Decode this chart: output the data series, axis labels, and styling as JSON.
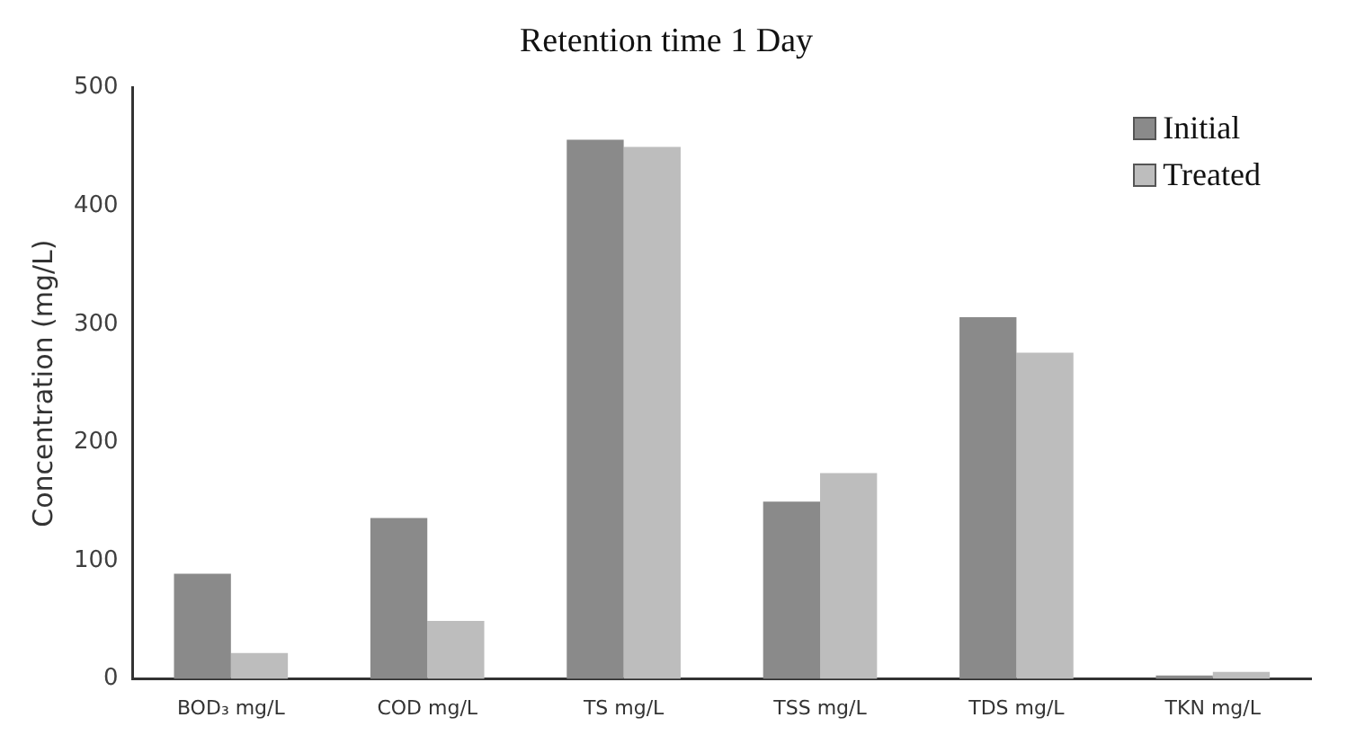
{
  "chart_data": {
    "type": "bar",
    "title": "Retention time 1 Day",
    "ylabel": "Concentration (mg/L)",
    "categories": [
      "BOD₃ mg/L",
      "COD mg/L",
      "TS mg/L",
      "TSS mg/L",
      "TDS mg/L",
      "TKN mg/L"
    ],
    "series": [
      {
        "name": "Initial",
        "color": "#8a8a8a",
        "values": [
          89,
          136,
          456,
          150,
          306,
          3
        ]
      },
      {
        "name": "Treated",
        "color": "#bdbdbd",
        "values": [
          22,
          49,
          450,
          174,
          276,
          6
        ]
      }
    ],
    "ylim": [
      0,
      500
    ],
    "yticks": [
      0,
      100,
      200,
      300,
      400,
      500
    ],
    "grid": false,
    "legend": "top right"
  }
}
